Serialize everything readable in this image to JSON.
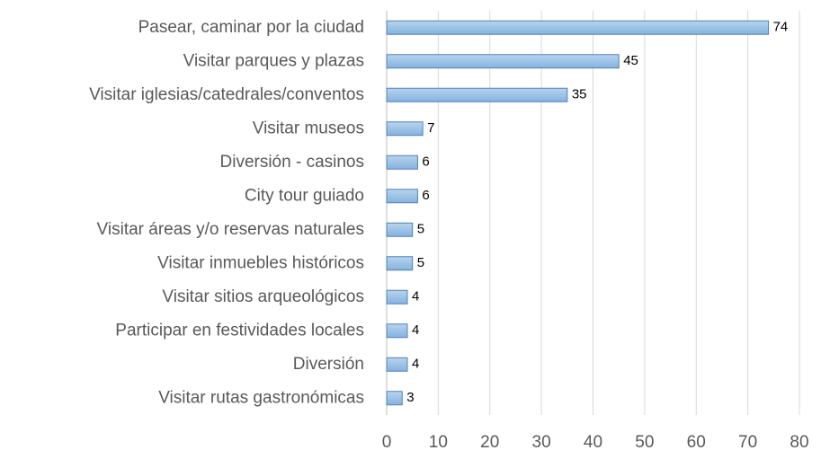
{
  "chart_data": {
    "type": "bar",
    "orientation": "horizontal",
    "categories": [
      "Pasear, caminar por la ciudad",
      "Visitar parques y plazas",
      "Visitar iglesias/catedrales/conventos",
      "Visitar museos",
      "Diversión - casinos",
      "City tour guiado",
      "Visitar áreas y/o reservas naturales",
      "Visitar inmuebles históricos",
      "Visitar sitios arqueológicos",
      "Participar en festividades locales",
      "Diversión",
      "Visitar rutas gastronómicas"
    ],
    "values": [
      74,
      45,
      35,
      7,
      6,
      6,
      5,
      5,
      4,
      4,
      4,
      3
    ],
    "color": "#9dc3e6",
    "xlim": [
      0,
      80
    ],
    "xticks": [
      0,
      10,
      20,
      30,
      40,
      50,
      60,
      70,
      80
    ],
    "grid": true
  }
}
